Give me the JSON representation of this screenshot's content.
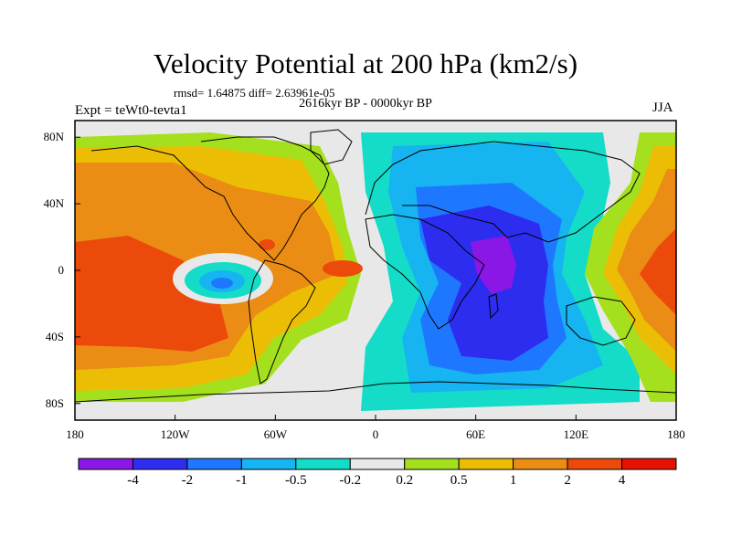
{
  "title": "Velocity Potential at 200 hPa (km2/s)",
  "stats_line": "rmsd= 1.64875  diff= 2.63961e-05",
  "period": "2616kyr BP - 0000kyr BP",
  "experiment": "Expt = teWt0-tevta1",
  "season": "JJA",
  "map": {
    "lon_range": [
      -180,
      180
    ],
    "lat_range": [
      -90,
      90
    ],
    "lon_ticks": [
      {
        "value": -180,
        "label": "180"
      },
      {
        "value": -120,
        "label": "120W"
      },
      {
        "value": -60,
        "label": "60W"
      },
      {
        "value": 0,
        "label": "0"
      },
      {
        "value": 60,
        "label": "60E"
      },
      {
        "value": 120,
        "label": "120E"
      },
      {
        "value": 180,
        "label": "180"
      }
    ],
    "lat_ticks": [
      {
        "value": 80,
        "label": "80N"
      },
      {
        "value": 40,
        "label": "40N"
      },
      {
        "value": 0,
        "label": "0"
      },
      {
        "value": -40,
        "label": "40S"
      },
      {
        "value": -80,
        "label": "80S"
      }
    ]
  },
  "colorbar": {
    "colors": [
      "#8a17e6",
      "#2d2df0",
      "#1e78ff",
      "#16b4f0",
      "#14dcc8",
      "#e8e8e8",
      "#a4e01e",
      "#ebbe05",
      "#eb8c14",
      "#eb4a0a",
      "#e61200"
    ],
    "labels": [
      "-4",
      "-2",
      "-1",
      "-0.5",
      "-0.2",
      "0.2",
      "0.5",
      "1",
      "2",
      "4"
    ]
  }
}
